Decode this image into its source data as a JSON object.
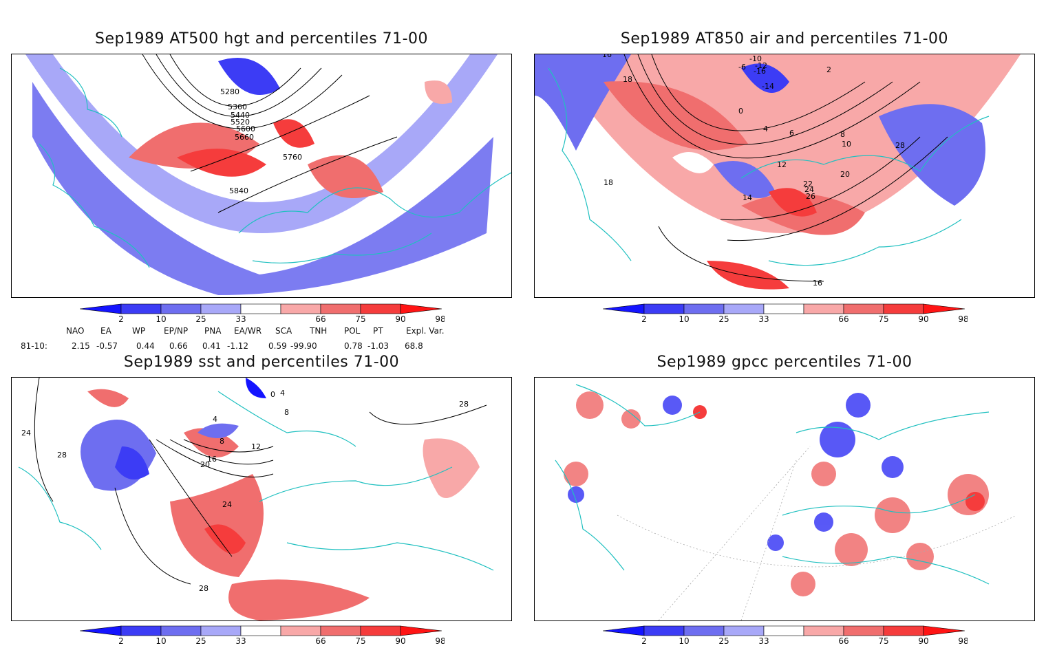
{
  "panels": [
    {
      "title": "Sep1989 AT500 hgt and percentiles 71-00",
      "contour_labels": [
        "5280",
        "5360",
        "5440",
        "5520",
        "5600",
        "5660",
        "5760",
        "5840"
      ]
    },
    {
      "title": "Sep1989 AT850 air and percentiles 71-00",
      "contour_labels": [
        "16",
        "18",
        "-10",
        "-12",
        "-16",
        "-6",
        "-14",
        "2",
        "0",
        "4",
        "6",
        "8",
        "10",
        "12",
        "14",
        "20",
        "22",
        "24",
        "26",
        "28",
        "18",
        "16"
      ]
    },
    {
      "title": "Sep1989 sst and percentiles 71-00",
      "contour_labels": [
        "24",
        "28",
        "4",
        "8",
        "12",
        "16",
        "20",
        "24",
        "28",
        "8",
        "4",
        "0",
        "28"
      ]
    },
    {
      "title": "Sep1989 gpcc percentiles 71-00",
      "contour_labels": []
    }
  ],
  "colorbar": {
    "labels": [
      "2",
      "10",
      "25",
      "33",
      "66",
      "75",
      "90",
      "98"
    ],
    "colors": [
      "#1414ff",
      "#3c3cf5",
      "#6e6ef0",
      "#a8a8f8",
      "#ffffff",
      "#f8a8a8",
      "#f06e6e",
      "#f53c3c",
      "#ff1414"
    ]
  },
  "indices": {
    "headers": [
      "NAO",
      "EA",
      "WP",
      "EP/NP",
      "PNA",
      "EA/WR",
      "SCA",
      "TNH",
      "POL",
      "PT",
      "Expl. Var."
    ],
    "row_label": "81-10:",
    "values": [
      "2.15",
      "-0.57",
      "0.44",
      "0.66",
      "0.41",
      "-1.12",
      "0.59",
      "-99.90",
      "0.78",
      "-1.03",
      "68.8"
    ]
  }
}
